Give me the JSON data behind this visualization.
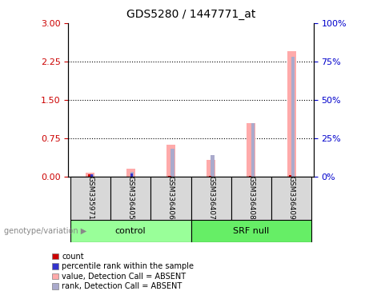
{
  "title": "GDS5280 / 1447771_at",
  "samples": [
    "GSM335971",
    "GSM336405",
    "GSM336406",
    "GSM336407",
    "GSM336408",
    "GSM336409"
  ],
  "group_labels": [
    "control",
    "SRF null"
  ],
  "ylim_left": [
    0,
    3
  ],
  "ylim_right": [
    0,
    100
  ],
  "yticks_left": [
    0,
    0.75,
    1.5,
    2.25,
    3
  ],
  "yticks_right": [
    0,
    25,
    50,
    75,
    100
  ],
  "ylabel_left_color": "#cc0000",
  "ylabel_right_color": "#0000cc",
  "absent_value": [
    0.08,
    0.15,
    0.62,
    0.32,
    1.05,
    2.45
  ],
  "absent_rank_pct": [
    1.5,
    3.0,
    18.0,
    14.0,
    35.0,
    78.0
  ],
  "count_value": [
    0.05,
    0.0,
    0.02,
    0.02,
    0.02,
    0.03
  ],
  "rank_value_pct": [
    1.5,
    2.0,
    0.0,
    0.0,
    0.0,
    0.0
  ],
  "color_count": "#cc0000",
  "color_rank": "#3333cc",
  "color_absent_value": "#ffaaaa",
  "color_absent_rank": "#aaaacc",
  "color_group_control": "#99ff99",
  "color_group_srf": "#66ee66",
  "color_sample_box": "#d8d8d8",
  "legend_items": [
    {
      "label": "count",
      "color": "#cc0000"
    },
    {
      "label": "percentile rank within the sample",
      "color": "#3333cc"
    },
    {
      "label": "value, Detection Call = ABSENT",
      "color": "#ffaaaa"
    },
    {
      "label": "rank, Detection Call = ABSENT",
      "color": "#aaaacc"
    }
  ],
  "background_color": "#ffffff",
  "group_label_text": "genotype/variation"
}
